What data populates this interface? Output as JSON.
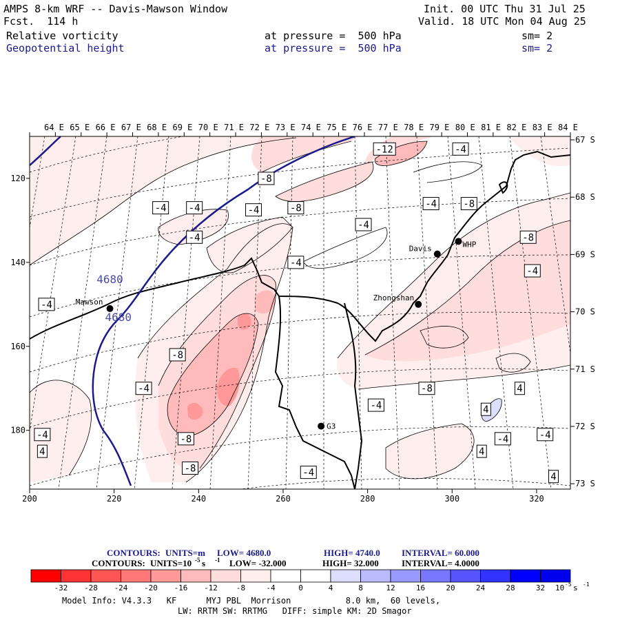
{
  "header": {
    "title": "AMPS 8-km WRF -- Davis-Mawson Window",
    "forecast": "Fcst.  114 h",
    "init": "Init. 00 UTC Thu 31 Jul 25",
    "valid": "Valid. 18 UTC Mon 04 Aug 25",
    "field1": {
      "name": "Relative vorticity",
      "pressure": "at pressure =  500 hPa",
      "smooth": "sm= 2"
    },
    "field2": {
      "name": "Geopotential height",
      "pressure": "at pressure =  500 hPa",
      "smooth": "sm= 2"
    }
  },
  "map": {
    "lon_labels": [
      "64 E",
      "65 E",
      "66 E",
      "67 E",
      "68 E",
      "69 E",
      "70 E",
      "71 E",
      "72 E",
      "73 E",
      "74 E",
      "75 E",
      "76 E",
      "77 E",
      "78 E",
      "79 E",
      "80 E",
      "81 E",
      "82 E",
      "83 E",
      "84 E"
    ],
    "lat_labels": [
      "67 S",
      "68 S",
      "69 S",
      "70 S",
      "71 S",
      "72 S",
      "73 S"
    ],
    "x_ticks": [
      "200",
      "220",
      "240",
      "260",
      "280",
      "300",
      "320"
    ],
    "y_ticks": [
      "120",
      "140",
      "160",
      "180"
    ],
    "stations": [
      {
        "name": "Mawson",
        "x": 219,
        "y": 151
      },
      {
        "name": "Davis",
        "x": 296.5,
        "y": 138
      },
      {
        "name": "WHP",
        "x": 301.5,
        "y": 135
      },
      {
        "name": "Zhongshan",
        "x": 292,
        "y": 150
      },
      {
        "name": "G3",
        "x": 269,
        "y": 179
      }
    ],
    "height_labels": [
      {
        "text": "4680",
        "x": 219,
        "y": 144
      },
      {
        "text": "4680",
        "x": 221,
        "y": 153
      }
    ],
    "vort_labels": [
      {
        "text": "-4",
        "x": 231,
        "y": 127
      },
      {
        "text": "-4",
        "x": 239,
        "y": 127
      },
      {
        "text": "-4",
        "x": 253,
        "y": 127.5
      },
      {
        "text": "-8",
        "x": 256,
        "y": 120
      },
      {
        "text": "-12",
        "x": 284,
        "y": 113
      },
      {
        "text": "-4",
        "x": 302,
        "y": 113
      },
      {
        "text": "-8",
        "x": 263,
        "y": 127
      },
      {
        "text": "-4",
        "x": 295,
        "y": 126
      },
      {
        "text": "-4",
        "x": 279,
        "y": 131
      },
      {
        "text": "-8",
        "x": 304,
        "y": 126
      },
      {
        "text": "-8",
        "x": 318,
        "y": 134
      },
      {
        "text": "-4",
        "x": 239,
        "y": 134
      },
      {
        "text": "-4",
        "x": 263,
        "y": 140
      },
      {
        "text": "-4",
        "x": 319,
        "y": 142
      },
      {
        "text": "-4",
        "x": 204,
        "y": 150
      },
      {
        "text": "-8",
        "x": 235,
        "y": 162
      },
      {
        "text": "-4",
        "x": 227,
        "y": 170
      },
      {
        "text": "-8",
        "x": 294,
        "y": 170
      },
      {
        "text": "-4",
        "x": 282,
        "y": 174
      },
      {
        "text": "4",
        "x": 308,
        "y": 175
      },
      {
        "text": "4",
        "x": 316,
        "y": 170
      },
      {
        "text": "-4",
        "x": 203,
        "y": 181
      },
      {
        "text": "4",
        "x": 203,
        "y": 185
      },
      {
        "text": "-8",
        "x": 237,
        "y": 182
      },
      {
        "text": "-8",
        "x": 238,
        "y": 189
      },
      {
        "text": "-4",
        "x": 312,
        "y": 182
      },
      {
        "text": "-4",
        "x": 322,
        "y": 181
      },
      {
        "text": "4",
        "x": 307,
        "y": 185
      },
      {
        "text": "-4",
        "x": 266,
        "y": 190
      },
      {
        "text": "4",
        "x": 324,
        "y": 191
      }
    ]
  },
  "legend": {
    "height_line": {
      "contours": "CONTOURS:",
      "units": "UNITS=m",
      "low": "LOW=  4680.0",
      "high": "HIGH=  4740.0",
      "interval": "INTERVAL=   60.000"
    },
    "vort_line": {
      "contours": "CONTOURS:",
      "units": "UNITS=10",
      "units_exp": "-5",
      "units_suffix": " s",
      "units_suffix_exp": "-1",
      "low": "LOW=  -32.000",
      "high": "HIGH=  32.000",
      "interval": "INTERVAL=   4.0000"
    },
    "colors": [
      "#ff0000",
      "#ff3333",
      "#ff5555",
      "#ff7777",
      "#ff9999",
      "#ffbbbb",
      "#ffdddd",
      "#ffeeee",
      "#ffffff",
      "#ffffff",
      "#ddddff",
      "#bbbbff",
      "#9999ff",
      "#7777ff",
      "#5555ff",
      "#3333ff",
      "#0000ff",
      "#0000ee"
    ],
    "tick_labels": [
      "-32",
      "-28",
      "-24",
      "-20",
      "-16",
      "-12",
      "-8",
      "-4",
      "0",
      "4",
      "8",
      "12",
      "16",
      "20",
      "24",
      "28",
      "32"
    ],
    "units_label": "10",
    "units_exp": "-5",
    "units_suffix": " s",
    "units_suffix_exp": "-1"
  },
  "footer": {
    "line1": "Model Info: V4.3.3   KF      MYJ PBL  Morrison           8.0 km,  60 levels,",
    "line2": "LW: RRTM SW: RRTMG   DIFF: simple KM: 2D Smagor"
  }
}
